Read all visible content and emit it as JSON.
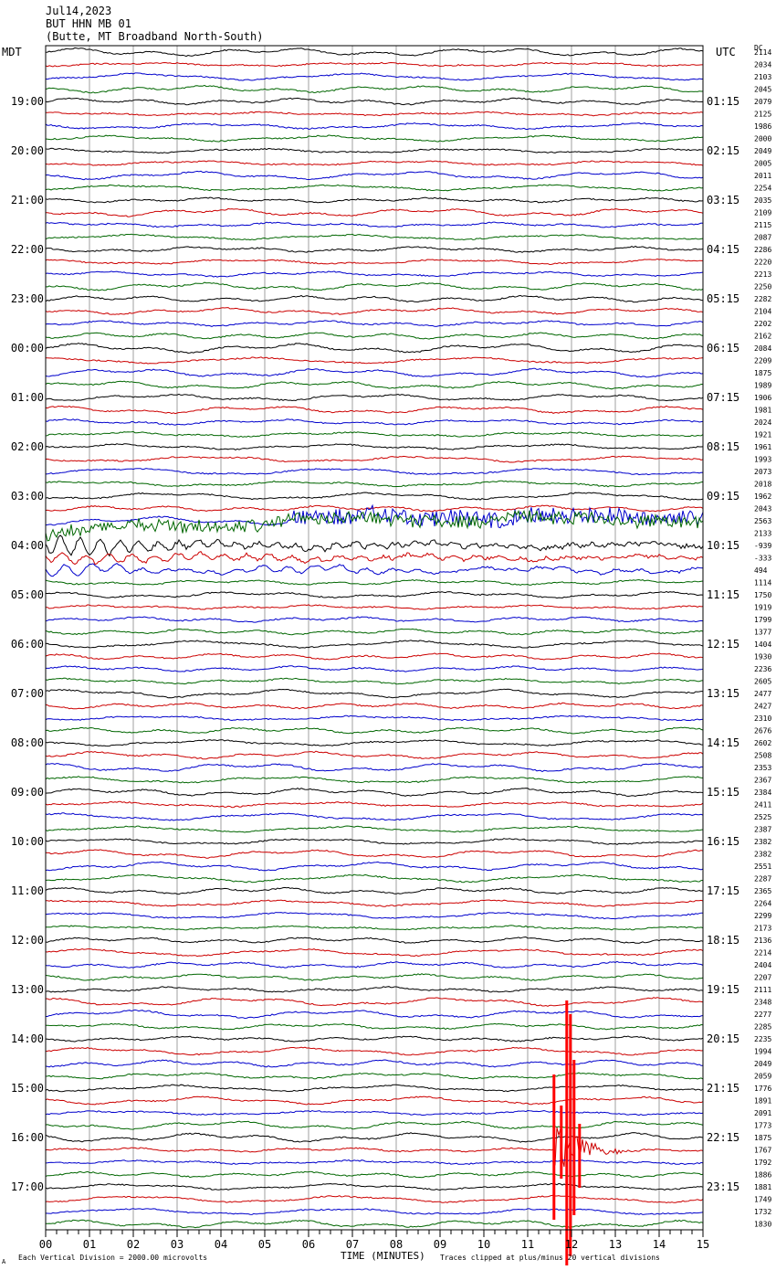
{
  "header": {
    "date": "Jul14,2023",
    "station": "BUT HHN MB 01",
    "location": "(Butte, MT Broadband North-South)",
    "left_tz": "MDT",
    "right_tz": "UTC",
    "dc_label": "DC"
  },
  "footer": {
    "scale_note": "Each Vertical Division = 2000.00 microvolts",
    "clip_note": "Traces clipped at plus/minus 20 vertical divisions",
    "x_axis_title": "TIME (MINUTES)",
    "corner_mark": "A"
  },
  "colors": [
    "#000000",
    "#cc0000",
    "#0000cc",
    "#006600"
  ],
  "chart_data": {
    "type": "line",
    "title": "BUT HHN MB 01",
    "xlabel": "TIME (MINUTES)",
    "xlim": [
      0,
      15
    ],
    "x_ticks": [
      "00",
      "01",
      "02",
      "03",
      "04",
      "05",
      "06",
      "07",
      "08",
      "09",
      "10",
      "11",
      "12",
      "13",
      "14",
      "15"
    ],
    "row_count": 96,
    "left_hour_labels": [
      "19:00",
      "20:00",
      "21:00",
      "22:00",
      "23:00",
      "00:00",
      "01:00",
      "02:00",
      "03:00",
      "04:00",
      "05:00",
      "06:00",
      "07:00",
      "08:00",
      "09:00",
      "10:00",
      "11:00",
      "12:00",
      "13:00",
      "14:00",
      "15:00",
      "16:00",
      "17:00"
    ],
    "right_hour_labels": [
      "01:15",
      "02:15",
      "03:15",
      "04:15",
      "05:15",
      "06:15",
      "07:15",
      "08:15",
      "09:15",
      "10:15",
      "11:15",
      "12:15",
      "13:15",
      "14:15",
      "15:15",
      "16:15",
      "17:15",
      "18:15",
      "19:15",
      "20:15",
      "21:15",
      "22:15",
      "23:15"
    ],
    "dc_offsets": [
      "2114",
      "2034",
      "2103",
      "2045",
      "2079",
      "2125",
      "1986",
      "2000",
      "2049",
      "2005",
      "2011",
      "2254",
      "2035",
      "2109",
      "2115",
      "2087",
      "2286",
      "2220",
      "2213",
      "2250",
      "2282",
      "2104",
      "2202",
      "2162",
      "2084",
      "2209",
      "1875",
      "1989",
      "1906",
      "1981",
      "2024",
      "1921",
      "1961",
      "1993",
      "2073",
      "2018",
      "1962",
      "2043",
      "2563",
      "2133",
      "-939",
      "-333",
      "494",
      "1114",
      "1750",
      "1919",
      "1799",
      "1377",
      "1404",
      "1930",
      "2236",
      "2605",
      "2477",
      "2427",
      "2310",
      "2676",
      "2602",
      "2508",
      "2353",
      "2367",
      "2384",
      "2411",
      "2525",
      "2387",
      "2382",
      "2382",
      "2551",
      "2287",
      "2365",
      "2264",
      "2299",
      "2173",
      "2136",
      "2214",
      "2404",
      "2207",
      "2111",
      "2348",
      "2277",
      "2285",
      "2235",
      "1994",
      "2049",
      "2059",
      "1776",
      "1891",
      "2091",
      "1773",
      "1875",
      "1767",
      "1792",
      "1886",
      "1881",
      "1749",
      "1732",
      "1830"
    ],
    "events": [
      {
        "name": "teleseismic arrival",
        "start_row": 37,
        "end_row": 42,
        "start_minute": 0,
        "peak_minute": 1
      },
      {
        "name": "local event",
        "row": 89,
        "minute": 11.6,
        "clipped": true
      }
    ]
  }
}
